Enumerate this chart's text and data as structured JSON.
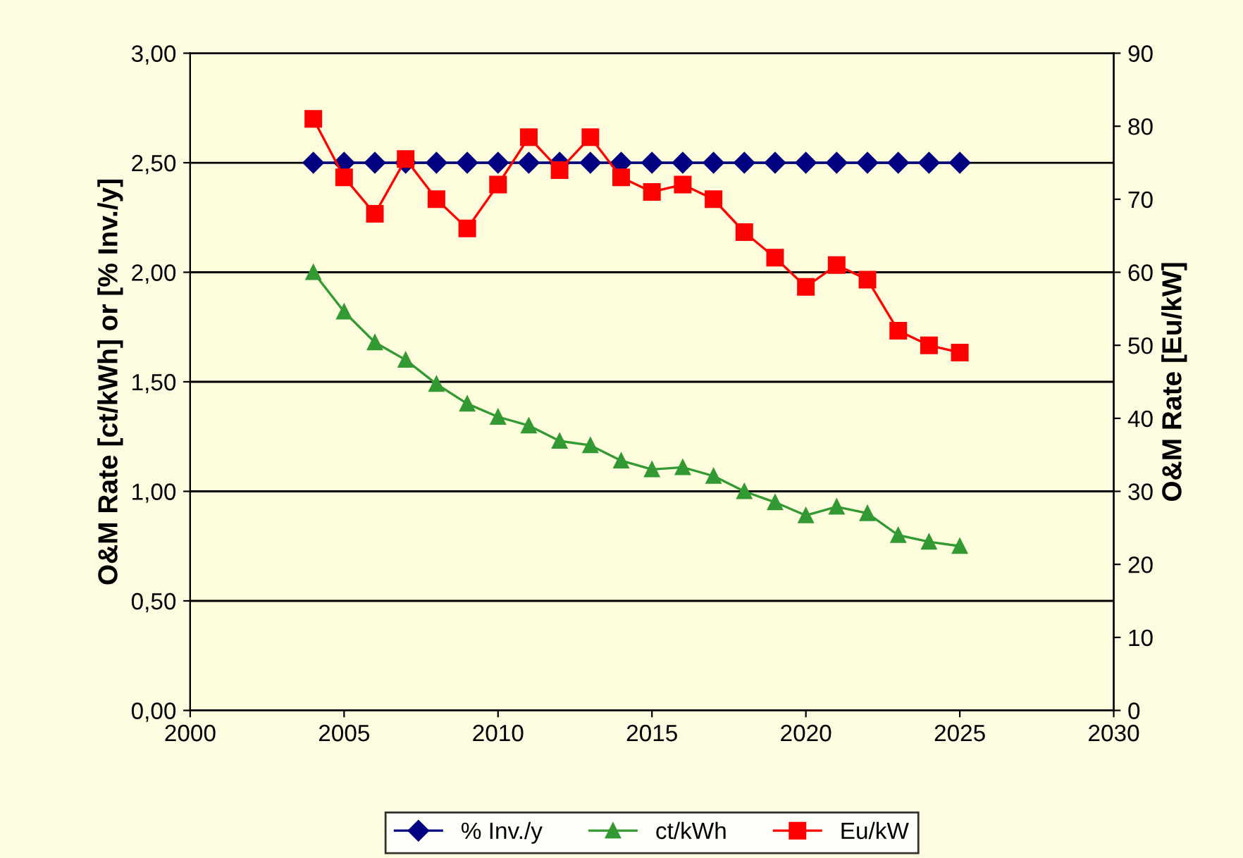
{
  "chart_data": {
    "type": "line",
    "x": [
      2004,
      2005,
      2006,
      2007,
      2008,
      2009,
      2010,
      2011,
      2012,
      2013,
      2014,
      2015,
      2016,
      2017,
      2018,
      2019,
      2020,
      2021,
      2022,
      2023,
      2024,
      2025
    ],
    "series": [
      {
        "name": "% Inv./y",
        "color": "#000080",
        "marker": "diamond",
        "values": [
          2.5,
          2.5,
          2.5,
          2.5,
          2.5,
          2.5,
          2.5,
          2.5,
          2.5,
          2.5,
          2.5,
          2.5,
          2.5,
          2.5,
          2.5,
          2.5,
          2.5,
          2.5,
          2.5,
          2.5,
          2.5,
          2.5
        ]
      },
      {
        "name": "ct/kWh",
        "color": "#339933",
        "marker": "triangle",
        "values": [
          2.0,
          1.82,
          1.68,
          1.6,
          1.49,
          1.4,
          1.34,
          1.3,
          1.23,
          1.21,
          1.14,
          1.1,
          1.11,
          1.07,
          1.0,
          0.95,
          0.89,
          0.93,
          0.9,
          0.8,
          0.77,
          0.75
        ]
      },
      {
        "name": "Eu/kW",
        "color": "#ff0000",
        "marker": "square",
        "axis": "y2",
        "values": [
          81,
          73,
          68,
          75.5,
          70,
          66,
          72,
          78.5,
          74,
          78.5,
          73,
          71,
          72,
          70,
          65.5,
          62,
          58,
          61,
          59,
          52,
          50,
          49
        ]
      }
    ],
    "ylabel": "O&M Rate [ct/kWh] or [% Inv./y]",
    "y2label": "O&M Rate [Eu/kW]",
    "xlim": [
      2000,
      2030
    ],
    "xticks": [
      2000,
      2005,
      2010,
      2015,
      2020,
      2025,
      2030
    ],
    "ylim": [
      0,
      3
    ],
    "yticks": [
      {
        "value": 0,
        "label": "0,00"
      },
      {
        "value": 0.5,
        "label": "0,50"
      },
      {
        "value": 1,
        "label": "1,00"
      },
      {
        "value": 1.5,
        "label": "1,50"
      },
      {
        "value": 2,
        "label": "2,00"
      },
      {
        "value": 2.5,
        "label": "2,50"
      },
      {
        "value": 3,
        "label": "3,00"
      }
    ],
    "y2lim": [
      0,
      90
    ],
    "y2ticks": [
      0,
      10,
      20,
      30,
      40,
      50,
      60,
      70,
      80,
      90
    ],
    "grid": "y",
    "legend": "bottom"
  }
}
